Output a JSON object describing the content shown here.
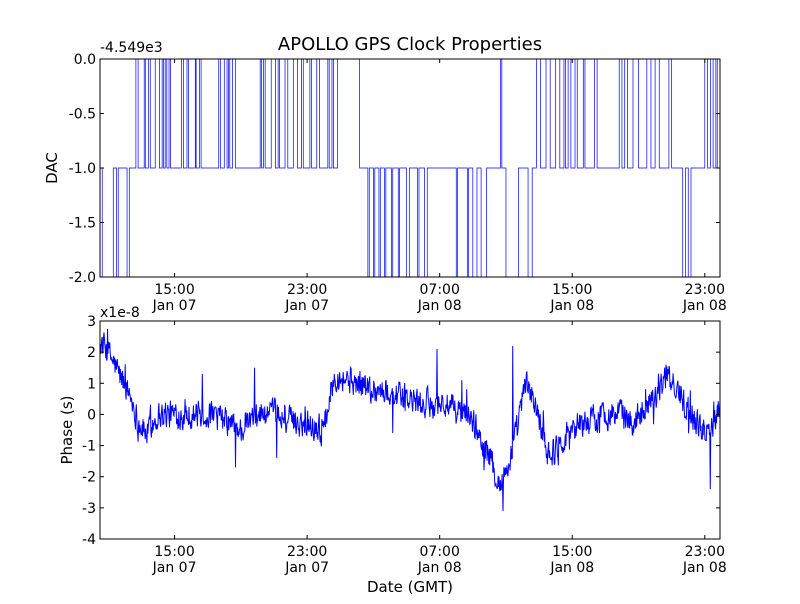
{
  "figure": {
    "title": "APOLLO GPS Clock Properties",
    "xlabel": "Date (GMT)"
  },
  "chart_data": [
    {
      "type": "line",
      "id": "dac",
      "ylabel": "DAC",
      "offset_label": "-4.549e3",
      "ylim": [
        -2.0,
        0.0
      ],
      "yticks": [
        -2.0,
        -1.5,
        -1.0,
        -0.5,
        0.0
      ],
      "ytick_labels": [
        "-2.0",
        "-1.5",
        "-1.0",
        "-0.5",
        "0.0"
      ],
      "xlim": [
        "2013-01-07T10:30",
        "2013-01-08T23:55"
      ],
      "xticks": [
        {
          "time": "2013-01-07T15:00",
          "label1": "15:00",
          "label2": "Jan 07"
        },
        {
          "time": "2013-01-07T23:00",
          "label1": "23:00",
          "label2": "Jan 07"
        },
        {
          "time": "2013-01-08T07:00",
          "label1": "07:00",
          "label2": "Jan 08"
        },
        {
          "time": "2013-01-08T15:00",
          "label1": "15:00",
          "label2": "Jan 08"
        },
        {
          "time": "2013-01-08T23:00",
          "label1": "23:00",
          "label2": "Jan 08"
        }
      ],
      "color": "#0000ff",
      "linewidth": "thin",
      "step": true,
      "points": [
        [
          "2013-01-07T10:30",
          -1.0
        ],
        [
          "2013-01-07T10:38",
          -2.0
        ],
        [
          "2013-01-07T11:18",
          -1.0
        ],
        [
          "2013-01-07T11:30",
          -2.0
        ],
        [
          "2013-01-07T11:36",
          -1.0
        ],
        [
          "2013-01-07T12:08",
          -2.0
        ],
        [
          "2013-01-07T12:16",
          -1.0
        ],
        [
          "2013-01-07T12:40",
          0.0
        ],
        [
          "2013-01-07T12:48",
          -1.0
        ],
        [
          "2013-01-07T13:10",
          0.0
        ],
        [
          "2013-01-07T13:14",
          -1.0
        ],
        [
          "2013-01-07T13:25",
          0.0
        ],
        [
          "2013-01-07T13:32",
          -1.0
        ],
        [
          "2013-01-07T13:50",
          0.0
        ],
        [
          "2013-01-07T14:05",
          -1.0
        ],
        [
          "2013-01-07T14:15",
          0.0
        ],
        [
          "2013-01-07T14:20",
          -1.0
        ],
        [
          "2013-01-07T14:26",
          0.0
        ],
        [
          "2013-01-07T14:32",
          -1.0
        ],
        [
          "2013-01-07T14:40",
          0.0
        ],
        [
          "2013-01-07T14:45",
          -1.0
        ],
        [
          "2013-01-07T15:25",
          0.0
        ],
        [
          "2013-01-07T15:32",
          -1.0
        ],
        [
          "2013-01-07T15:45",
          0.0
        ],
        [
          "2013-01-07T15:50",
          -1.0
        ],
        [
          "2013-01-07T16:15",
          0.0
        ],
        [
          "2013-01-07T16:18",
          -1.0
        ],
        [
          "2013-01-07T16:30",
          0.0
        ],
        [
          "2013-01-07T16:36",
          -1.0
        ],
        [
          "2013-01-07T17:40",
          0.0
        ],
        [
          "2013-01-07T17:46",
          -1.0
        ],
        [
          "2013-01-07T18:00",
          0.0
        ],
        [
          "2013-01-07T18:10",
          -1.0
        ],
        [
          "2013-01-07T18:15",
          0.0
        ],
        [
          "2013-01-07T18:20",
          -1.0
        ],
        [
          "2013-01-07T18:30",
          0.0
        ],
        [
          "2013-01-07T18:40",
          -1.0
        ],
        [
          "2013-01-07T20:10",
          0.0
        ],
        [
          "2013-01-07T20:15",
          -1.0
        ],
        [
          "2013-01-07T20:22",
          0.0
        ],
        [
          "2013-01-07T20:28",
          -1.0
        ],
        [
          "2013-01-07T20:50",
          0.0
        ],
        [
          "2013-01-07T21:05",
          -1.0
        ],
        [
          "2013-01-07T21:15",
          0.0
        ],
        [
          "2013-01-07T21:20",
          -1.0
        ],
        [
          "2013-01-07T21:40",
          0.0
        ],
        [
          "2013-01-07T21:50",
          -1.0
        ],
        [
          "2013-01-07T22:10",
          0.0
        ],
        [
          "2013-01-07T22:25",
          -1.0
        ],
        [
          "2013-01-07T22:40",
          0.0
        ],
        [
          "2013-01-07T22:46",
          -1.0
        ],
        [
          "2013-01-07T23:10",
          0.0
        ],
        [
          "2013-01-07T23:16",
          -1.0
        ],
        [
          "2013-01-07T23:35",
          0.0
        ],
        [
          "2013-01-07T23:45",
          -1.0
        ],
        [
          "2013-01-08T00:15",
          0.0
        ],
        [
          "2013-01-08T00:20",
          -1.0
        ],
        [
          "2013-01-08T00:30",
          0.0
        ],
        [
          "2013-01-08T00:35",
          -1.0
        ],
        [
          "2013-01-08T00:50",
          0.0
        ],
        [
          "2013-01-08T02:10",
          -1.0
        ],
        [
          "2013-01-08T02:40",
          -2.0
        ],
        [
          "2013-01-08T02:45",
          -1.0
        ],
        [
          "2013-01-08T03:00",
          -2.0
        ],
        [
          "2013-01-08T03:05",
          -1.0
        ],
        [
          "2013-01-08T03:20",
          -2.0
        ],
        [
          "2013-01-08T03:25",
          -1.0
        ],
        [
          "2013-01-08T03:40",
          -2.0
        ],
        [
          "2013-01-08T03:45",
          -1.0
        ],
        [
          "2013-01-08T04:05",
          -2.0
        ],
        [
          "2013-01-08T04:10",
          -1.0
        ],
        [
          "2013-01-08T04:30",
          -2.0
        ],
        [
          "2013-01-08T04:35",
          -1.0
        ],
        [
          "2013-01-08T05:00",
          -2.0
        ],
        [
          "2013-01-08T05:10",
          -1.0
        ],
        [
          "2013-01-08T05:40",
          -2.0
        ],
        [
          "2013-01-08T05:45",
          -1.0
        ],
        [
          "2013-01-08T06:05",
          -2.0
        ],
        [
          "2013-01-08T06:15",
          -1.0
        ],
        [
          "2013-01-08T08:00",
          -2.0
        ],
        [
          "2013-01-08T08:05",
          -1.0
        ],
        [
          "2013-01-08T08:40",
          -2.0
        ],
        [
          "2013-01-08T08:45",
          -1.0
        ],
        [
          "2013-01-08T09:00",
          -2.0
        ],
        [
          "2013-01-08T09:15",
          -1.0
        ],
        [
          "2013-01-08T09:30",
          -2.0
        ],
        [
          "2013-01-08T09:50",
          -1.0
        ],
        [
          "2013-01-08T10:40",
          0.0
        ],
        [
          "2013-01-08T10:45",
          -1.0
        ],
        [
          "2013-01-08T11:00",
          -2.0
        ],
        [
          "2013-01-08T11:45",
          -1.0
        ],
        [
          "2013-01-08T12:20",
          -2.0
        ],
        [
          "2013-01-08T12:35",
          -1.0
        ],
        [
          "2013-01-08T12:50",
          0.0
        ],
        [
          "2013-01-08T13:05",
          -1.0
        ],
        [
          "2013-01-08T13:25",
          0.0
        ],
        [
          "2013-01-08T13:40",
          -1.0
        ],
        [
          "2013-01-08T14:00",
          0.0
        ],
        [
          "2013-01-08T14:15",
          -1.0
        ],
        [
          "2013-01-08T14:30",
          0.0
        ],
        [
          "2013-01-08T14:35",
          -1.0
        ],
        [
          "2013-01-08T14:45",
          0.0
        ],
        [
          "2013-01-08T14:55",
          -1.0
        ],
        [
          "2013-01-08T15:10",
          0.0
        ],
        [
          "2013-01-08T15:18",
          -1.0
        ],
        [
          "2013-01-08T15:40",
          0.0
        ],
        [
          "2013-01-08T15:46",
          -1.0
        ],
        [
          "2013-01-08T16:20",
          0.0
        ],
        [
          "2013-01-08T16:30",
          -1.0
        ],
        [
          "2013-01-08T17:50",
          0.0
        ],
        [
          "2013-01-08T18:00",
          -1.0
        ],
        [
          "2013-01-08T18:10",
          0.0
        ],
        [
          "2013-01-08T18:20",
          -1.0
        ],
        [
          "2013-01-08T18:40",
          0.0
        ],
        [
          "2013-01-08T19:00",
          -1.0
        ],
        [
          "2013-01-08T19:30",
          0.0
        ],
        [
          "2013-01-08T19:45",
          -1.0
        ],
        [
          "2013-01-08T20:00",
          0.0
        ],
        [
          "2013-01-08T20:15",
          -1.0
        ],
        [
          "2013-01-08T20:50",
          0.0
        ],
        [
          "2013-01-08T21:00",
          -1.0
        ],
        [
          "2013-01-08T21:40",
          -2.0
        ],
        [
          "2013-01-08T21:50",
          -1.0
        ],
        [
          "2013-01-08T22:00",
          -2.0
        ],
        [
          "2013-01-08T22:10",
          -1.0
        ],
        [
          "2013-01-08T23:00",
          0.0
        ],
        [
          "2013-01-08T23:10",
          -1.0
        ],
        [
          "2013-01-08T23:20",
          0.0
        ],
        [
          "2013-01-08T23:30",
          -1.0
        ],
        [
          "2013-01-08T23:40",
          0.0
        ],
        [
          "2013-01-08T23:45",
          -1.0
        ],
        [
          "2013-01-08T23:55",
          -1.0
        ]
      ]
    },
    {
      "type": "line",
      "id": "phase",
      "ylabel": "Phase (s)",
      "offset_label": "x1e-8",
      "ylim": [
        -4,
        3
      ],
      "yticks": [
        -4,
        -3,
        -2,
        -1,
        0,
        1,
        2,
        3
      ],
      "ytick_labels": [
        "-4",
        "-3",
        "-2",
        "-1",
        "0",
        "1",
        "2",
        "3"
      ],
      "xlim": [
        "2013-01-07T10:30",
        "2013-01-08T23:55"
      ],
      "xticks": [
        {
          "time": "2013-01-07T15:00",
          "label1": "15:00",
          "label2": "Jan 07"
        },
        {
          "time": "2013-01-07T23:00",
          "label1": "23:00",
          "label2": "Jan 07"
        },
        {
          "time": "2013-01-08T07:00",
          "label1": "07:00",
          "label2": "Jan 08"
        },
        {
          "time": "2013-01-08T15:00",
          "label1": "15:00",
          "label2": "Jan 08"
        },
        {
          "time": "2013-01-08T23:00",
          "label1": "23:00",
          "label2": "Jan 08"
        }
      ],
      "color": "#0000ff",
      "linewidth": "medium",
      "noise": 0.4,
      "trend": [
        [
          "2013-01-07T10:30",
          2.3
        ],
        [
          "2013-01-07T11:00",
          2.0
        ],
        [
          "2013-01-07T11:40",
          1.3
        ],
        [
          "2013-01-07T12:20",
          0.6
        ],
        [
          "2013-01-07T12:50",
          -0.3
        ],
        [
          "2013-01-07T13:20",
          -0.6
        ],
        [
          "2013-01-07T14:00",
          0.0
        ],
        [
          "2013-01-07T15:00",
          0.0
        ],
        [
          "2013-01-07T16:00",
          0.0
        ],
        [
          "2013-01-07T17:00",
          0.0
        ],
        [
          "2013-01-07T18:00",
          -0.2
        ],
        [
          "2013-01-07T19:00",
          -0.5
        ],
        [
          "2013-01-07T20:00",
          0.0
        ],
        [
          "2013-01-07T21:00",
          0.0
        ],
        [
          "2013-01-07T22:00",
          -0.2
        ],
        [
          "2013-01-07T23:00",
          -0.3
        ],
        [
          "2013-01-08T00:00",
          -0.5
        ],
        [
          "2013-01-08T00:20",
          0.5
        ],
        [
          "2013-01-08T00:40",
          1.3
        ],
        [
          "2013-01-08T02:00",
          1.0
        ],
        [
          "2013-01-08T03:00",
          0.8
        ],
        [
          "2013-01-08T04:00",
          0.7
        ],
        [
          "2013-01-08T05:00",
          0.5
        ],
        [
          "2013-01-08T06:00",
          0.3
        ],
        [
          "2013-01-08T07:00",
          0.4
        ],
        [
          "2013-01-08T07:40",
          0.2
        ],
        [
          "2013-01-08T08:30",
          0.0
        ],
        [
          "2013-01-08T09:00",
          -0.2
        ],
        [
          "2013-01-08T09:40",
          -1.0
        ],
        [
          "2013-01-08T10:10",
          -1.6
        ],
        [
          "2013-01-08T10:40",
          -2.3
        ],
        [
          "2013-01-08T11:10",
          -1.6
        ],
        [
          "2013-01-08T11:40",
          -0.5
        ],
        [
          "2013-01-08T12:10",
          1.0
        ],
        [
          "2013-01-08T12:40",
          0.5
        ],
        [
          "2013-01-08T13:10",
          -0.5
        ],
        [
          "2013-01-08T13:40",
          -1.3
        ],
        [
          "2013-01-08T14:10",
          -1.0
        ],
        [
          "2013-01-08T15:00",
          -0.4
        ],
        [
          "2013-01-08T16:00",
          -0.2
        ],
        [
          "2013-01-08T17:00",
          0.0
        ],
        [
          "2013-01-08T18:00",
          0.0
        ],
        [
          "2013-01-08T18:40",
          -0.3
        ],
        [
          "2013-01-08T19:20",
          0.3
        ],
        [
          "2013-01-08T20:00",
          0.6
        ],
        [
          "2013-01-08T20:40",
          1.2
        ],
        [
          "2013-01-08T21:20",
          0.8
        ],
        [
          "2013-01-08T22:00",
          0.2
        ],
        [
          "2013-01-08T22:30",
          -0.3
        ],
        [
          "2013-01-08T23:00",
          -0.5
        ],
        [
          "2013-01-08T23:30",
          -0.3
        ],
        [
          "2013-01-08T23:55",
          0.5
        ]
      ],
      "spikes": [
        [
          "2013-01-07T16:40",
          1.3
        ],
        [
          "2013-01-07T19:50",
          1.5
        ],
        [
          "2013-01-07T21:10",
          -1.4
        ],
        [
          "2013-01-08T06:50",
          2.1
        ],
        [
          "2013-01-08T08:20",
          1.1
        ],
        [
          "2013-01-08T11:25",
          2.2
        ],
        [
          "2013-01-08T10:50",
          -3.1
        ],
        [
          "2013-01-08T23:20",
          -2.4
        ],
        [
          "2013-01-08T20:40",
          1.6
        ],
        [
          "2013-01-08T13:30",
          -1.6
        ],
        [
          "2013-01-08T04:10",
          -0.6
        ],
        [
          "2013-01-07T18:40",
          -1.7
        ]
      ]
    }
  ]
}
